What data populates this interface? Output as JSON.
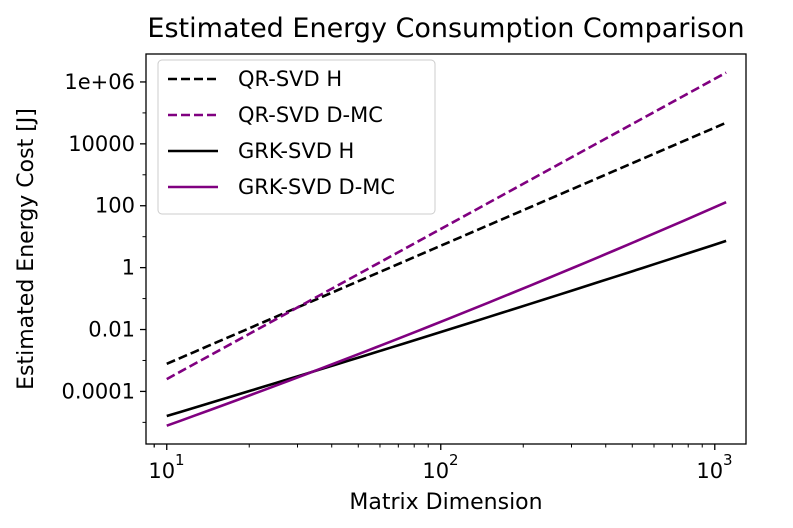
{
  "chart_data": {
    "type": "line",
    "title": "Estimated Energy Consumption Comparison",
    "xlabel": "Matrix Dimension",
    "ylabel": "Estimated Energy Cost [J]",
    "x_scale": "log",
    "y_scale": "log",
    "xlim": [
      8.4,
      1300
    ],
    "ylim": [
      2e-06,
      8000000.0
    ],
    "x_ticks": [
      {
        "value": 10,
        "label": "10"
      },
      {
        "value": 100,
        "label": "10"
      },
      {
        "value": 1000,
        "label": "10"
      }
    ],
    "x_tick_exponents": [
      "1",
      "2",
      "3"
    ],
    "y_ticks": [
      {
        "value": 1000000.0,
        "label": "1e+06"
      },
      {
        "value": 10000.0,
        "label": "10000"
      },
      {
        "value": 100,
        "label": "100"
      },
      {
        "value": 1,
        "label": "1"
      },
      {
        "value": 0.01,
        "label": "0.01"
      },
      {
        "value": 0.0001,
        "label": "0.0001"
      }
    ],
    "grid": false,
    "legend_position": "top-left",
    "x": [
      10,
      1100
    ],
    "series": [
      {
        "name": "QR-SVD H",
        "color": "#000000",
        "dash": "dashed",
        "values": [
          0.00078,
          48000
        ]
      },
      {
        "name": "QR-SVD D-MC",
        "color": "#800080",
        "dash": "dashed",
        "values": [
          0.00025,
          2000000
        ]
      },
      {
        "name": "GRK-SVD H",
        "color": "#000000",
        "dash": "solid",
        "values": [
          1.6e-05,
          7.3
        ]
      },
      {
        "name": "GRK-SVD D-MC",
        "color": "#800080",
        "dash": "solid",
        "values": [
          7.8e-06,
          130
        ]
      }
    ]
  }
}
